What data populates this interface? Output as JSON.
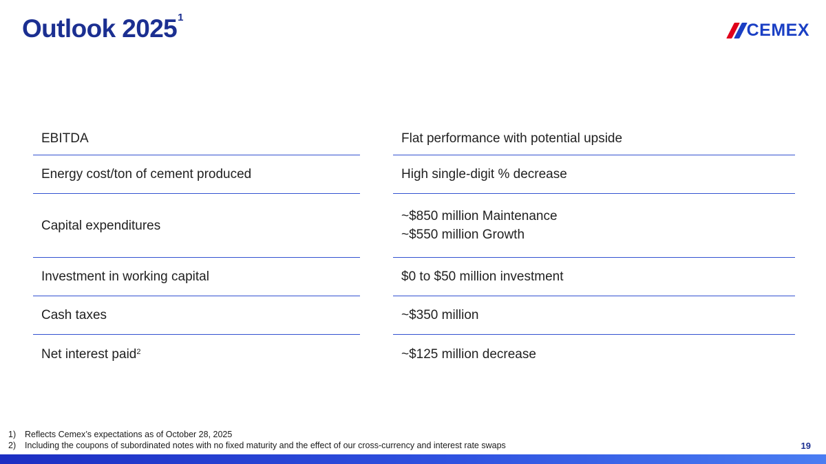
{
  "slide": {
    "title": "Outlook 2025",
    "title_superscript": "1",
    "page_number": "19"
  },
  "logo": {
    "text": "CEMEX"
  },
  "table": {
    "rows": [
      {
        "label": "EBITDA",
        "value_lines": [
          "Flat performance with potential upside"
        ]
      },
      {
        "label": "Energy cost/ton of cement produced",
        "value_lines": [
          "High single-digit % decrease"
        ]
      },
      {
        "label": "Capital expenditures",
        "value_lines": [
          "~$850 million Maintenance",
          "~$550 million Growth"
        ]
      },
      {
        "label": "Investment in working capital",
        "value_lines": [
          "$0 to $50 million investment"
        ]
      },
      {
        "label": "Cash taxes",
        "value_lines": [
          "~$350 million"
        ]
      },
      {
        "label": "Net interest paid",
        "label_superscript": "2",
        "value_lines": [
          "~$125 million decrease"
        ]
      }
    ]
  },
  "footnotes": [
    {
      "num": "1)",
      "text": "Reflects Cemex’s expectations as of October 28, 2025"
    },
    {
      "num": "2)",
      "text": "Including the coupons of subordinated notes with no fixed maturity and the effect of our cross-currency and interest rate swaps"
    }
  ],
  "colors": {
    "brand_navy": "#1B2F91",
    "brand_blue": "#1A3FC4",
    "accent_red": "#E0001B",
    "rule_blue": "#3050D0"
  }
}
